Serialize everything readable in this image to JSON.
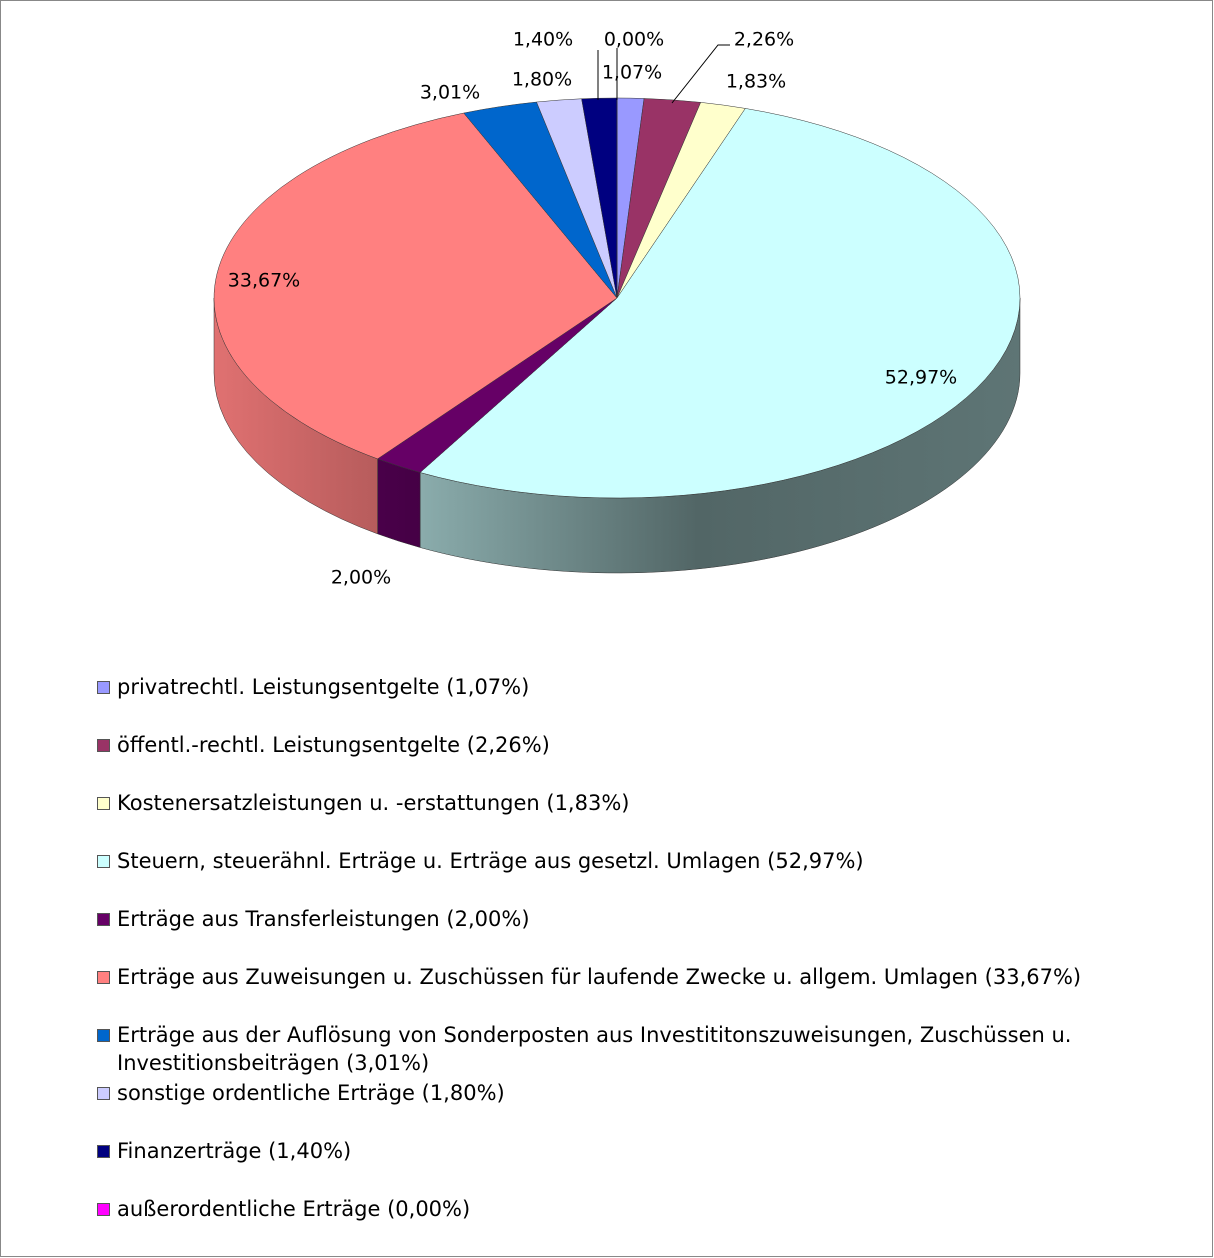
{
  "chart_data": {
    "type": "pie",
    "categories": [
      "privatrechtl. Leistungsentgelte (1,07%)",
      "öffentl.-rechtl. Leistungsentgelte (2,26%)",
      "Kostenersatzleistungen u. -erstattungen (1,83%)",
      "Steuern, steuerähnl. Erträge u. Erträge aus gesetzl. Umlagen (52,97%)",
      "Erträge aus Transferleistungen (2,00%)",
      "Erträge aus Zuweisungen u. Zuschüssen für laufende Zwecke u. allgem. Umlagen (33,67%)",
      "Erträge aus der Auflösung von Sonderposten aus Investititonszuweisungen, Zuschüssen u. Investitionsbeiträgen (3,01%)",
      "sonstige ordentliche Erträge (1,80%)",
      "Finanzerträge (1,40%)",
      "außerordentliche Erträge (0,00%)"
    ],
    "values": [
      1.07,
      2.26,
      1.83,
      52.97,
      2.0,
      33.67,
      3.01,
      1.8,
      1.4,
      0.0
    ],
    "value_labels": [
      "1,07%",
      "2,26%",
      "1,83%",
      "52,97%",
      "2,00%",
      "33,67%",
      "3,01%",
      "1,80%",
      "1,40%",
      "0,00%"
    ],
    "colors": [
      "#9999ff",
      "#993366",
      "#ffffcc",
      "#ccffff",
      "#660066",
      "#ff8080",
      "#0066cc",
      "#ccccff",
      "#000080",
      "#ff00ff"
    ],
    "legend": "bottom"
  }
}
